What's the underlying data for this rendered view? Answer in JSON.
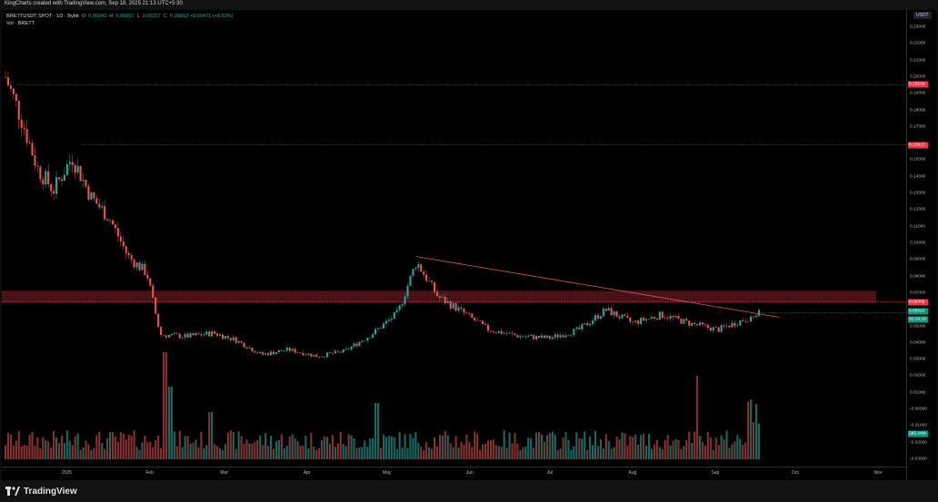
{
  "header": {
    "caption": "KingCharts created with TradingView.com, Sep 18, 2025 21:13 UTC+5:30"
  },
  "legend": {
    "symbol": "BRETTUSDT SPOT · 1D · Bybit",
    "o": "O",
    "o_val": "0.05342",
    "h": "H",
    "h_val": "0.05951",
    "l": "L",
    "l_val": "0.05227",
    "c": "C",
    "c_val": "0.05813 +0.00471 (+8.82%)",
    "vol": "Vol · BRETT"
  },
  "price_axis": {
    "currency": "USDT",
    "ticks": [
      "0.23000",
      "0.22000",
      "0.21000",
      "0.20000",
      "0.19000",
      "0.18000",
      "0.17000",
      "0.15000",
      "0.14000",
      "0.13000",
      "0.12000",
      "0.11000",
      "0.10000",
      "0.09000",
      "0.08000",
      "0.07000",
      "0.05000",
      "0.04000",
      "0.03000",
      "0.02000",
      "0.01000",
      "-0.00000",
      "-0.01000",
      "-0.02000",
      "-0.03000"
    ],
    "tags": {
      "upper_resistance": "0.19545",
      "mid_resistance": "0.15913",
      "zone_top": "0.06466",
      "last_price": "0.05813",
      "countdown": "02:16:18",
      "volume": "285.44M"
    },
    "colors": {
      "red_tag": "#f23645",
      "green_tag": "#089981"
    }
  },
  "time_axis": {
    "labels": [
      "2025",
      "Feb",
      "Mar",
      "Apr",
      "May",
      "Jun",
      "Jul",
      "Aug",
      "Sep",
      "Oct",
      "Nov"
    ]
  },
  "chart_data": {
    "type": "candlestick",
    "symbol": "BRETTUSDT",
    "timeframe": "1D",
    "ylim": [
      -0.03,
      0.23
    ],
    "close_trend": [
      {
        "date": "2024-12-09",
        "close": 0.2
      },
      {
        "date": "2024-12-15",
        "close": 0.175
      },
      {
        "date": "2024-12-21",
        "close": 0.145
      },
      {
        "date": "2024-12-27",
        "close": 0.132
      },
      {
        "date": "2025-01-03",
        "close": 0.152
      },
      {
        "date": "2025-01-10",
        "close": 0.128
      },
      {
        "date": "2025-01-17",
        "close": 0.115
      },
      {
        "date": "2025-01-24",
        "close": 0.092
      },
      {
        "date": "2025-01-31",
        "close": 0.082
      },
      {
        "date": "2025-02-05",
        "close": 0.045
      },
      {
        "date": "2025-02-15",
        "close": 0.044
      },
      {
        "date": "2025-02-25",
        "close": 0.046
      },
      {
        "date": "2025-03-05",
        "close": 0.042
      },
      {
        "date": "2025-03-15",
        "close": 0.033
      },
      {
        "date": "2025-03-25",
        "close": 0.036
      },
      {
        "date": "2025-04-05",
        "close": 0.032
      },
      {
        "date": "2025-04-15",
        "close": 0.035
      },
      {
        "date": "2025-04-25",
        "close": 0.045
      },
      {
        "date": "2025-05-05",
        "close": 0.058
      },
      {
        "date": "2025-05-12",
        "close": 0.089
      },
      {
        "date": "2025-05-20",
        "close": 0.068
      },
      {
        "date": "2025-05-28",
        "close": 0.06
      },
      {
        "date": "2025-06-08",
        "close": 0.048
      },
      {
        "date": "2025-06-20",
        "close": 0.044
      },
      {
        "date": "2025-07-01",
        "close": 0.043
      },
      {
        "date": "2025-07-12",
        "close": 0.048
      },
      {
        "date": "2025-07-22",
        "close": 0.06
      },
      {
        "date": "2025-08-01",
        "close": 0.052
      },
      {
        "date": "2025-08-12",
        "close": 0.057
      },
      {
        "date": "2025-08-22",
        "close": 0.052
      },
      {
        "date": "2025-09-02",
        "close": 0.048
      },
      {
        "date": "2025-09-10",
        "close": 0.053
      },
      {
        "date": "2025-09-18",
        "close": 0.05813
      }
    ],
    "horizontal_levels": [
      0.19545,
      0.15913
    ],
    "resistance_zone": [
      0.0646,
      0.0715
    ],
    "trendline": {
      "from": {
        "date": "2025-05-12",
        "price": 0.092
      },
      "to": {
        "date": "2025-09-25",
        "price": 0.0555
      }
    }
  }
}
